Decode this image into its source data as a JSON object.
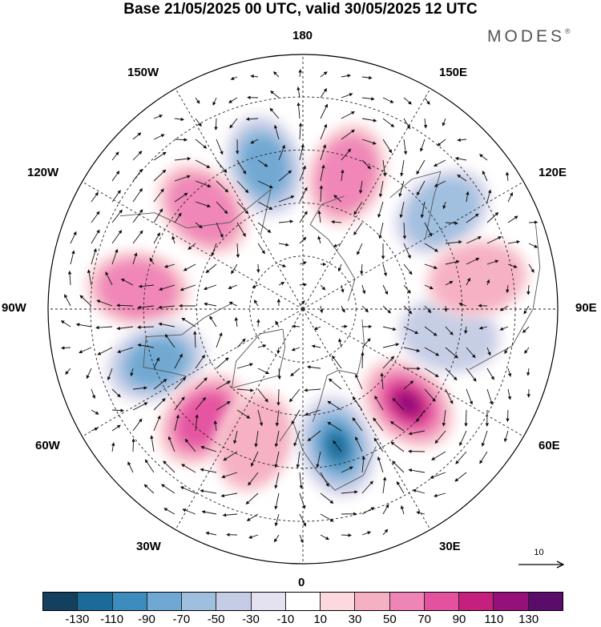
{
  "title": "Base 21/05/2025 00 UTC, valid 30/05/2025 12 UTC",
  "brand": "MODES",
  "brand_mark": "®",
  "longitude_labels": {
    "top": "180",
    "bottom": "0",
    "left": "90W",
    "right": "90E",
    "upper_left": "150W",
    "upper_right": "150E",
    "mid_upper_left": "120W",
    "mid_upper_right": "120E",
    "lower_left": "60W",
    "lower_right": "60E",
    "bottom_left": "30W",
    "bottom_right": "30E"
  },
  "vector_scale": {
    "value": "10"
  },
  "colorbar": {
    "colors": [
      "#12405e",
      "#1b6a97",
      "#3c8dbd",
      "#6fa8d2",
      "#9fbfdf",
      "#c5cde6",
      "#e4e2f0",
      "#ffffff",
      "#fbd9dc",
      "#f6b0c3",
      "#ef85b7",
      "#e4529f",
      "#c6207e",
      "#96107a",
      "#5a0c6a"
    ],
    "ticks": [
      "-130",
      "-110",
      "-90",
      "-70",
      "-50",
      "-30",
      "-10",
      "10",
      "30",
      "50",
      "70",
      "90",
      "110",
      "130"
    ]
  },
  "anomaly_field": {
    "features": [
      {
        "sign": "negative",
        "value": -75,
        "lon": -165,
        "lat": 48
      },
      {
        "sign": "positive",
        "value": 65,
        "lon": -135,
        "lat": 50
      },
      {
        "sign": "positive",
        "value": 60,
        "lon": -97,
        "lat": 43
      },
      {
        "sign": "negative",
        "value": -80,
        "lon": -70,
        "lat": 46
      },
      {
        "sign": "positive",
        "value": 70,
        "lon": -42,
        "lat": 48
      },
      {
        "sign": "positive",
        "value": 45,
        "lon": -20,
        "lat": 50
      },
      {
        "sign": "negative",
        "value": -110,
        "lon": 14,
        "lat": 50
      },
      {
        "sign": "positive",
        "value": 115,
        "lon": 48,
        "lat": 50
      },
      {
        "sign": "positive",
        "value": 60,
        "lon": 162,
        "lat": 50
      },
      {
        "sign": "negative",
        "value": -60,
        "lon": 125,
        "lat": 42
      },
      {
        "sign": "negative",
        "value": -30,
        "lon": 80,
        "lat": 48
      },
      {
        "sign": "positive",
        "value": 30,
        "lon": 100,
        "lat": 40
      }
    ]
  }
}
